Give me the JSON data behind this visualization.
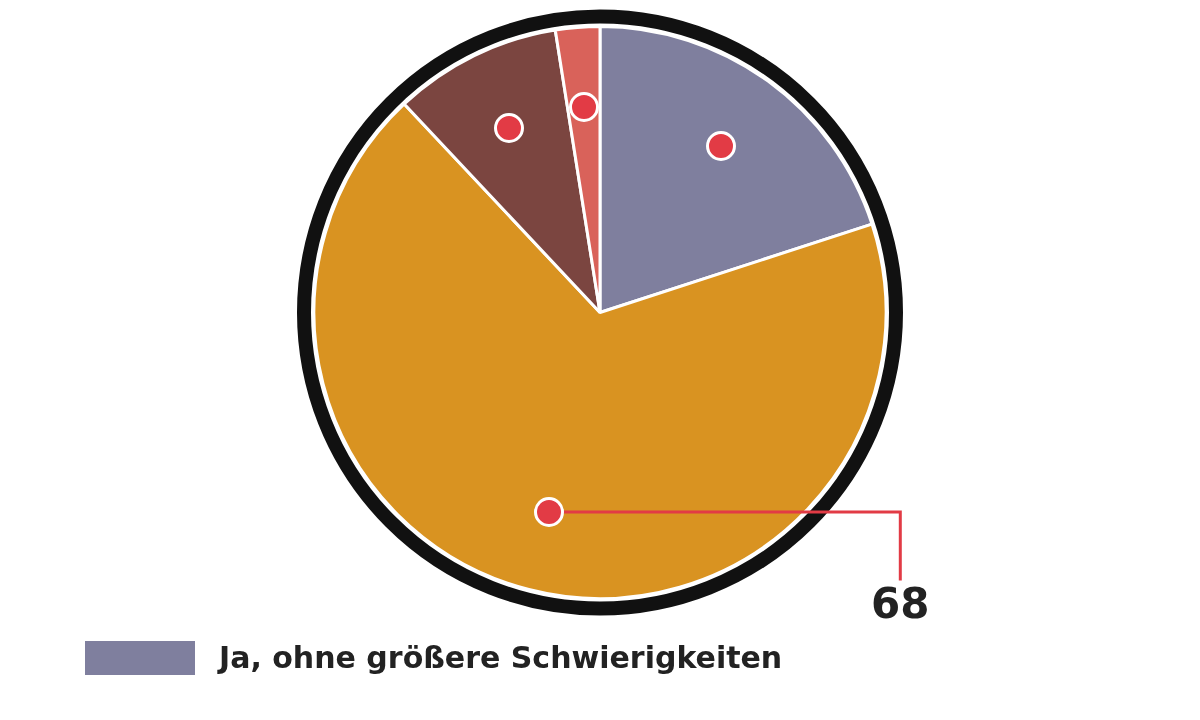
{
  "chart_data": {
    "type": "pie",
    "categories": [
      "Ja, ohne größere Schwierigkeiten",
      null,
      null,
      null
    ],
    "values": [
      20,
      68,
      9.5,
      2.5
    ],
    "colors": [
      "#7f7f9e",
      "#d99321",
      "#7b4540",
      "#d9625a"
    ],
    "value_labels": [
      null,
      "68",
      null,
      null
    ],
    "legend": "bottom"
  }
}
